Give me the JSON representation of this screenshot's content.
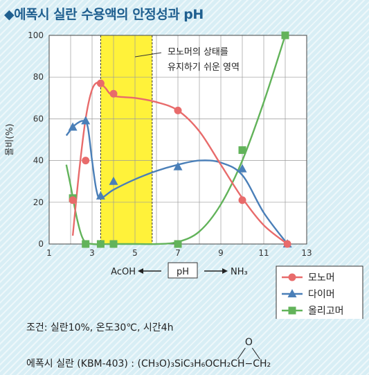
{
  "title": "◆에폭시 실란 수용액의 안정성과 pH",
  "chart_data": {
    "type": "line",
    "ylabel": "몰비(%)",
    "xlim": [
      1,
      13
    ],
    "ylim": [
      0,
      100
    ],
    "x_ticks": [
      "1",
      "3",
      "5",
      "7",
      "9",
      "11",
      "13"
    ],
    "y_ticks": [
      "0",
      "20",
      "40",
      "60",
      "80",
      "100"
    ],
    "grid": true,
    "highlight_region": {
      "x_from": 3.4,
      "x_to": 5.8,
      "color": "#fff23a"
    },
    "annotation": [
      "모노머의 상태를",
      "유지하기 쉬운 영역"
    ],
    "x_direction": {
      "left": "AcOH",
      "center": "pH",
      "right": "NH₃"
    },
    "legend_position": "bottom-right",
    "series": [
      {
        "name": "모노머",
        "color": "#e86b6b",
        "marker": "circle",
        "points": [
          [
            2.1,
            21
          ],
          [
            2.7,
            40
          ],
          [
            3.4,
            77
          ],
          [
            4.0,
            72
          ],
          [
            7.0,
            64
          ],
          [
            10.0,
            21
          ],
          [
            12.1,
            0
          ]
        ],
        "curve": [
          [
            2.1,
            4
          ],
          [
            2.4,
            35
          ],
          [
            2.7,
            60
          ],
          [
            3.0,
            74
          ],
          [
            3.3,
            77.5
          ],
          [
            3.6,
            75
          ],
          [
            4.0,
            71
          ],
          [
            5.0,
            70
          ],
          [
            6.0,
            68
          ],
          [
            7.0,
            64
          ],
          [
            8.0,
            54
          ],
          [
            9.0,
            38
          ],
          [
            10.0,
            22
          ],
          [
            11.0,
            9
          ],
          [
            12.1,
            0
          ]
        ]
      },
      {
        "name": "다이머",
        "color": "#4a7fb8",
        "marker": "triangle",
        "points": [
          [
            2.1,
            56
          ],
          [
            2.7,
            59
          ],
          [
            3.4,
            23
          ],
          [
            4.0,
            30
          ],
          [
            7.0,
            37
          ],
          [
            10.0,
            36
          ],
          [
            12.1,
            0
          ]
        ],
        "curve": [
          [
            1.8,
            52
          ],
          [
            2.2,
            57
          ],
          [
            2.6,
            59
          ],
          [
            2.8,
            56
          ],
          [
            3.0,
            40
          ],
          [
            3.2,
            26
          ],
          [
            3.4,
            22
          ],
          [
            4.0,
            26
          ],
          [
            5.0,
            31
          ],
          [
            6.0,
            35
          ],
          [
            7.0,
            38
          ],
          [
            8.0,
            40
          ],
          [
            9.0,
            39
          ],
          [
            10.0,
            33
          ],
          [
            11.0,
            15
          ],
          [
            12.1,
            0
          ]
        ]
      },
      {
        "name": "올리고머",
        "color": "#62b35a",
        "marker": "square",
        "points": [
          [
            2.1,
            22
          ],
          [
            2.7,
            0
          ],
          [
            3.4,
            0
          ],
          [
            4.0,
            0
          ],
          [
            7.0,
            0
          ],
          [
            10.0,
            45
          ],
          [
            12.0,
            100
          ]
        ],
        "curve": [
          [
            1.8,
            38
          ],
          [
            2.0,
            28
          ],
          [
            2.3,
            12
          ],
          [
            2.6,
            2
          ],
          [
            3.0,
            0
          ],
          [
            4.0,
            0
          ],
          [
            5.0,
            0
          ],
          [
            6.0,
            0
          ],
          [
            7.0,
            1
          ],
          [
            8.0,
            6
          ],
          [
            9.0,
            19
          ],
          [
            10.0,
            40
          ],
          [
            11.0,
            68
          ],
          [
            12.0,
            100
          ]
        ]
      }
    ]
  },
  "condition": "조건: 실란10%, 온도30℃, 시간4h",
  "silane_label": "에폭시 실란 (KBM-403) :",
  "silane_formula": "(CH₃O)₃SiC₃H₆OCH₂CH−CH₂",
  "epoxy_o": "O"
}
